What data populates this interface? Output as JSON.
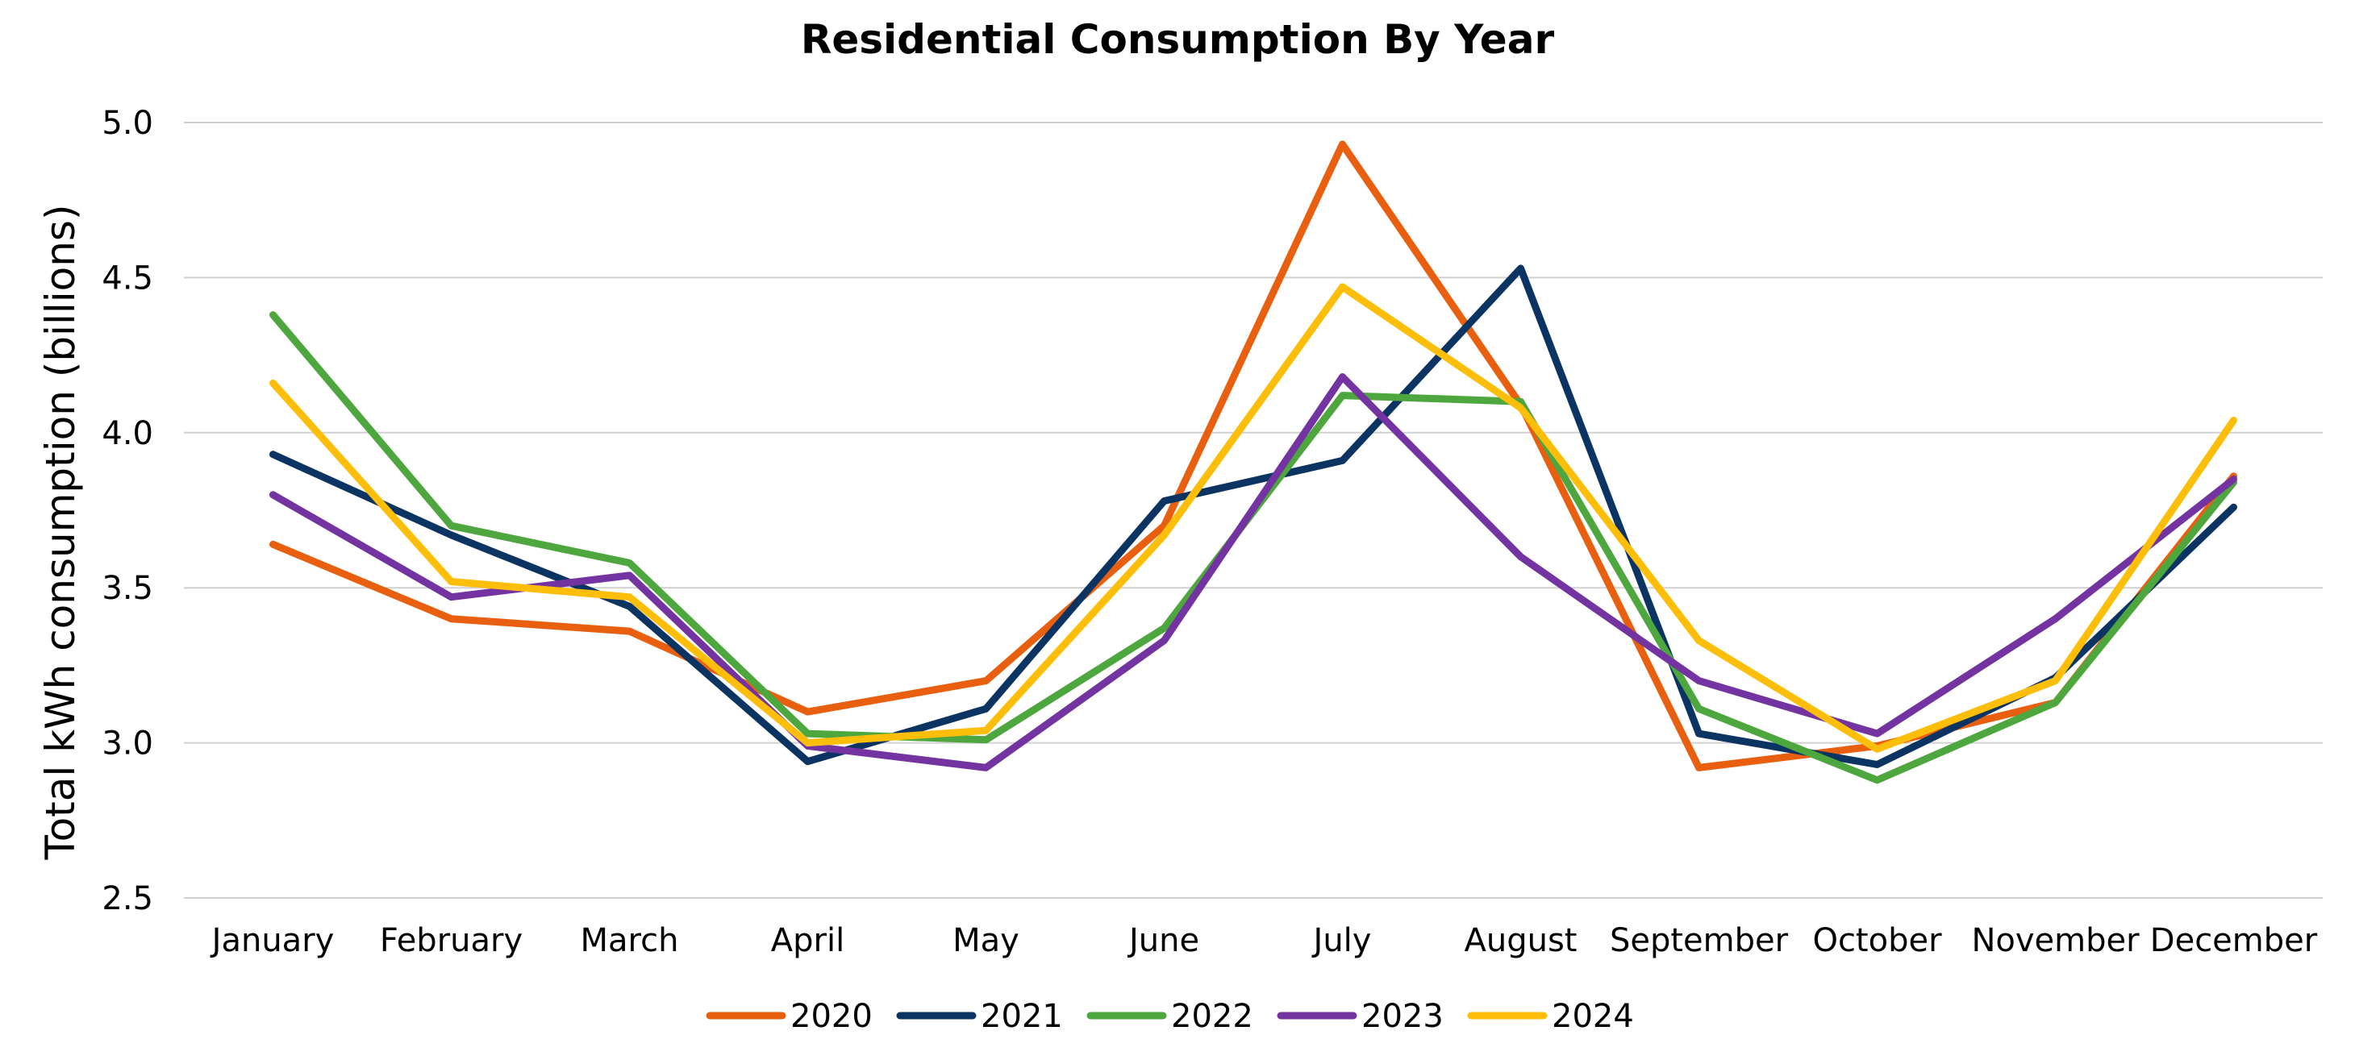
{
  "chart_data": {
    "type": "line",
    "title": "Residential Consumption By Year",
    "xlabel": "",
    "ylabel": "Total kWh consumption (billions)",
    "ylim": [
      2.5,
      5.0
    ],
    "y_ticks": [
      "2.5",
      "3.0",
      "3.5",
      "4.0",
      "4.5",
      "5.0"
    ],
    "grid": true,
    "legend_position": "bottom",
    "categories": [
      "January",
      "February",
      "March",
      "April",
      "May",
      "June",
      "July",
      "August",
      "September",
      "October",
      "November",
      "December"
    ],
    "series": [
      {
        "name": "2020",
        "color": "#E8600F",
        "values": [
          3.64,
          3.4,
          3.36,
          3.1,
          3.2,
          3.7,
          4.93,
          4.09,
          2.92,
          2.99,
          3.13,
          3.86
        ]
      },
      {
        "name": "2021",
        "color": "#0B3463",
        "values": [
          3.93,
          3.67,
          3.44,
          2.94,
          3.11,
          3.78,
          3.91,
          4.53,
          3.03,
          2.93,
          3.21,
          3.76
        ]
      },
      {
        "name": "2022",
        "color": "#4EA73E",
        "values": [
          4.38,
          3.7,
          3.58,
          3.03,
          3.01,
          3.37,
          4.12,
          4.1,
          3.11,
          2.88,
          3.13,
          3.84
        ]
      },
      {
        "name": "2023",
        "color": "#7334A1",
        "values": [
          3.8,
          3.47,
          3.54,
          2.99,
          2.92,
          3.33,
          4.18,
          3.6,
          3.2,
          3.03,
          3.4,
          3.85
        ]
      },
      {
        "name": "2024",
        "color": "#FDBE0A",
        "values": [
          4.16,
          3.52,
          3.47,
          3.0,
          3.04,
          3.67,
          4.47,
          4.08,
          3.33,
          2.98,
          3.2,
          4.04
        ]
      }
    ]
  }
}
